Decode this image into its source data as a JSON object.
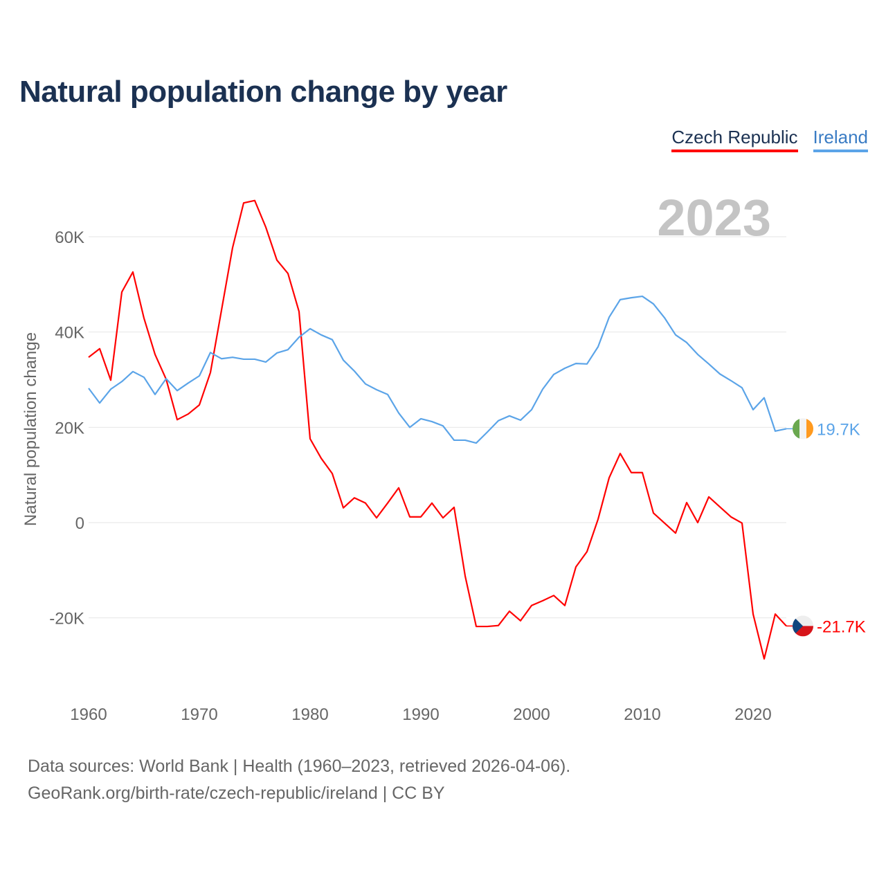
{
  "title": "Natural population change by year",
  "legend": [
    {
      "label": "Czech Republic",
      "color": "#ff0000"
    },
    {
      "label": "Ireland",
      "color": "#5ba4e8"
    }
  ],
  "year_label": "2023",
  "source_lines": [
    "Data sources: World Bank | Health (1960–2023, retrieved 2026-04-06).",
    "GeoRank.org/birth-rate/czech-republic/ireland | CC BY"
  ],
  "chart_data": {
    "type": "line",
    "title": "Natural population change by year",
    "xlabel": "",
    "ylabel": "Natural population change",
    "xlim": [
      1960,
      2023
    ],
    "ylim": [
      -30000,
      70000
    ],
    "x_ticks": [
      1960,
      1970,
      1980,
      1990,
      2000,
      2010,
      2020
    ],
    "x_tick_labels": [
      "1960",
      "1970",
      "1980",
      "1990",
      "2000",
      "2010",
      "2020"
    ],
    "y_ticks": [
      -20000,
      0,
      20000,
      40000,
      60000
    ],
    "y_tick_labels": [
      "-20K",
      "0",
      "20K",
      "40K",
      "60K"
    ],
    "grid": true,
    "legend_position": "top-right",
    "x": [
      1960,
      1961,
      1962,
      1963,
      1964,
      1965,
      1966,
      1967,
      1968,
      1969,
      1970,
      1971,
      1972,
      1973,
      1974,
      1975,
      1976,
      1977,
      1978,
      1979,
      1980,
      1981,
      1982,
      1983,
      1984,
      1985,
      1986,
      1987,
      1988,
      1989,
      1990,
      1991,
      1992,
      1993,
      1994,
      1995,
      1996,
      1997,
      1998,
      1999,
      2000,
      2001,
      2002,
      2003,
      2004,
      2005,
      2006,
      2007,
      2008,
      2009,
      2010,
      2011,
      2012,
      2013,
      2014,
      2015,
      2016,
      2017,
      2018,
      2019,
      2020,
      2021,
      2022,
      2023
    ],
    "series": [
      {
        "name": "Czech Republic",
        "color": "#ff0000",
        "end_label": "-21.7K",
        "flag": "czech-flag",
        "values": [
          34700,
          36500,
          29900,
          48400,
          52600,
          42900,
          35300,
          30100,
          21600,
          22800,
          24700,
          31500,
          44600,
          57700,
          67100,
          67600,
          62000,
          55100,
          52300,
          44300,
          17600,
          13500,
          10300,
          3100,
          5200,
          4100,
          1000,
          4100,
          7300,
          1200,
          1200,
          4100,
          1000,
          3200,
          -11200,
          -21800,
          -21800,
          -21600,
          -18600,
          -20600,
          -17400,
          -16400,
          -15300,
          -17400,
          -9300,
          -6100,
          700,
          9400,
          14500,
          10500,
          10500,
          2000,
          -100,
          -2200,
          4200,
          0,
          5400,
          3300,
          1200,
          -100,
          -19200,
          -28600,
          -19200,
          -21700
        ]
      },
      {
        "name": "Ireland",
        "color": "#5ba4e8",
        "end_label": "19.7K",
        "flag": "ireland-flag",
        "values": [
          28200,
          25100,
          28000,
          29600,
          31700,
          30500,
          26900,
          30200,
          27700,
          29300,
          30800,
          35700,
          34400,
          34700,
          34300,
          34300,
          33700,
          35600,
          36300,
          38900,
          40700,
          39400,
          38400,
          34100,
          31800,
          29100,
          27900,
          26900,
          23000,
          20000,
          21800,
          21200,
          20300,
          17300,
          17300,
          16700,
          19000,
          21400,
          22400,
          21500,
          23700,
          28000,
          31100,
          32400,
          33400,
          33300,
          36900,
          43100,
          46800,
          47200,
          47500,
          45900,
          43000,
          39400,
          37800,
          35300,
          33300,
          31200,
          29800,
          28300,
          23700,
          26200,
          19200,
          19700
        ]
      }
    ]
  }
}
